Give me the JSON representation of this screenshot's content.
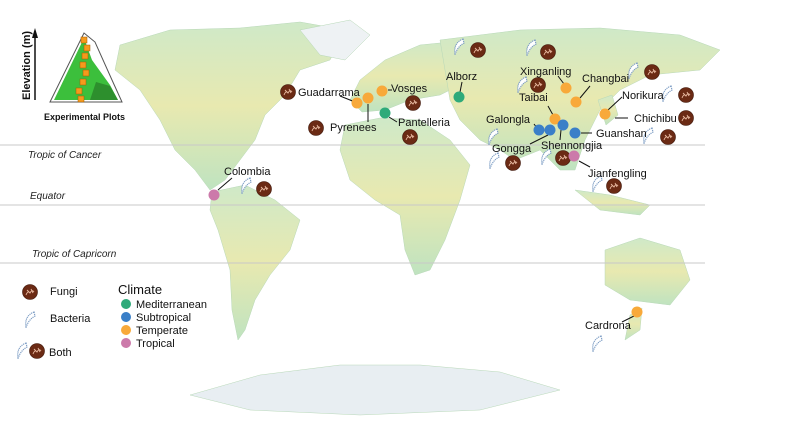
{
  "inset": {
    "axis_label": "Elevation (m)",
    "caption": "Experimental Plots"
  },
  "lines": {
    "cancer": "Tropic of Cancer",
    "equator": "Equator",
    "capricorn": "Tropic of Capricorn"
  },
  "legend_samples": {
    "fungi": "Fungi",
    "bacteria": "Bacteria",
    "both": "Both"
  },
  "legend_climate": {
    "title": "Climate",
    "items": [
      {
        "label": "Mediterranean",
        "color": "#2eaa7a"
      },
      {
        "label": "Subtropical",
        "color": "#3a7fc8"
      },
      {
        "label": "Temperate",
        "color": "#f8a93a"
      },
      {
        "label": "Tropical",
        "color": "#cc7aaa"
      }
    ]
  },
  "sites": [
    {
      "name": "Guadarrama",
      "climate": "Temperate",
      "samples": "fungi"
    },
    {
      "name": "Pyrenees",
      "climate": "Temperate",
      "samples": "fungi"
    },
    {
      "name": "Vosges",
      "climate": "Temperate",
      "samples": "fungi"
    },
    {
      "name": "Pantelleria",
      "climate": "Mediterranean",
      "samples": "fungi"
    },
    {
      "name": "Alborz",
      "climate": "Mediterranean",
      "samples": "both"
    },
    {
      "name": "Xinganling",
      "climate": "Temperate",
      "samples": "both"
    },
    {
      "name": "Changbai",
      "climate": "Temperate",
      "samples": "both"
    },
    {
      "name": "Norikura",
      "climate": "Temperate",
      "samples": "both"
    },
    {
      "name": "Chichibu",
      "climate": "Temperate",
      "samples": "fungi"
    },
    {
      "name": "Taibai",
      "climate": "Temperate",
      "samples": "both"
    },
    {
      "name": "Galongla",
      "climate": "Subtropical",
      "samples": "bacteria"
    },
    {
      "name": "Gongga",
      "climate": "Subtropical",
      "samples": "both"
    },
    {
      "name": "Shennongjia",
      "climate": "Subtropical",
      "samples": "both"
    },
    {
      "name": "Guanshan",
      "climate": "Subtropical",
      "samples": "both"
    },
    {
      "name": "Jianfengling",
      "climate": "Tropical",
      "samples": "both"
    },
    {
      "name": "Colombia",
      "climate": "Tropical",
      "samples": "both"
    },
    {
      "name": "Cardrona",
      "climate": "Temperate",
      "samples": "bacteria"
    }
  ]
}
